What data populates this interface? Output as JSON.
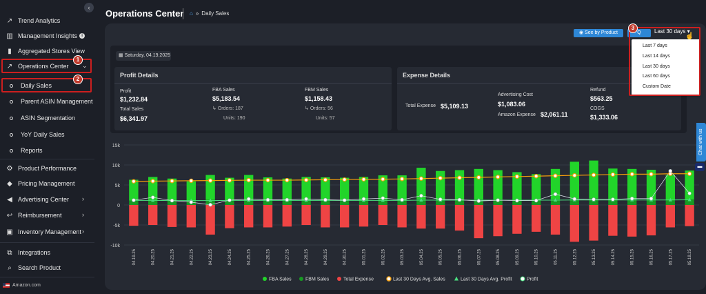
{
  "sidebar": {
    "items": [
      {
        "label": "Trend Analytics",
        "icon": "trend-chart-icon"
      },
      {
        "label": "Management Insights",
        "icon": "bar-chart-icon"
      },
      {
        "label": "Aggregated Stores View",
        "icon": "bar-chart-icon"
      },
      {
        "label": "Operations Center",
        "icon": "trend-up-icon"
      },
      {
        "label": "Product Performance",
        "icon": "gear-icon"
      },
      {
        "label": "Pricing Management",
        "icon": "tag-icon"
      },
      {
        "label": "Advertising Center",
        "icon": "megaphone-icon"
      },
      {
        "label": "Reimbursement",
        "icon": "return-icon"
      },
      {
        "label": "Inventory Management",
        "icon": "box-icon"
      },
      {
        "label": "Integrations",
        "icon": "plug-icon"
      },
      {
        "label": "Search Product",
        "icon": "search-icon"
      }
    ],
    "sub_items": [
      "Daily Sales",
      "Parent ASIN Management",
      "ASIN Segmentation",
      "YoY Daily Sales",
      "Reports"
    ],
    "footer": "Amazon.com",
    "badges": [
      "1",
      "2",
      "3"
    ],
    "collapse_glyph": "‹"
  },
  "header": {
    "title": "Operations Center",
    "breadcrumb_sep": "»",
    "breadcrumb": "Daily Sales"
  },
  "toolbar": {
    "see_by_product": "See by Product",
    "second_btn": "Q",
    "date_range": "Last 30 days"
  },
  "dropdown": {
    "options": [
      "Last 7 days",
      "Last 14 days",
      "Last 30 days",
      "Last 60 days",
      "Custom Date"
    ]
  },
  "summary": {
    "date": "Saturday, 04.19.2025",
    "profit_details": {
      "title": "Profit Details",
      "profit_label": "Profit",
      "profit_value": "$1,232.84",
      "total_sales_label": "Total Sales",
      "total_sales_value": "$6,341.97",
      "fba_label": "FBA Sales",
      "fba_value": "$5,183.54",
      "fba_orders": "Orders: 187",
      "fba_units": "Units: 190",
      "fbm_label": "FBM Sales",
      "fbm_value": "$1,158.43",
      "fbm_orders": "Orders: 56",
      "fbm_units": "Units: 57"
    },
    "expense_details": {
      "title": "Expense Details",
      "total_expense_label": "Total Expense",
      "total_expense_value": "$5,109.13",
      "advertising_label": "Advertising Cost",
      "advertising_value": "$1,083.06",
      "amazon_expense_label": "Amazon Expense",
      "amazon_expense_value": "$2,061.11",
      "refund_label": "Refund",
      "refund_value": "$563.25",
      "cogs_label": "COGS",
      "cogs_value": "$1,333.06"
    }
  },
  "chat": {
    "label": "Chat with us"
  },
  "colors": {
    "fba": "#22d42a",
    "fbm": "#179a22",
    "expense": "#ef4444",
    "avg_sales": "#f59e0b",
    "avg_profit": "#4ade80",
    "profit": "#ffffff"
  },
  "chart_data": {
    "type": "bar",
    "categories": [
      "04.19.25",
      "04.20.25",
      "04.21.25",
      "04.22.25",
      "04.23.25",
      "04.24.25",
      "04.25.25",
      "04.26.25",
      "04.27.25",
      "04.28.25",
      "04.29.25",
      "04.30.25",
      "05.01.25",
      "05.02.25",
      "05.03.25",
      "05.04.25",
      "05.05.25",
      "05.06.25",
      "05.07.25",
      "05.08.25",
      "05.09.25",
      "05.10.25",
      "05.11.25",
      "05.12.25",
      "05.13.25",
      "05.14.25",
      "05.15.25",
      "05.16.25",
      "05.17.25",
      "05.18.25"
    ],
    "y_ticks": [
      "15k",
      "10k",
      "5k",
      "0",
      "-5k",
      "-10k"
    ],
    "ylim": [
      -10000,
      15000
    ],
    "series": [
      {
        "name": "FBA Sales",
        "values": [
          5200,
          5800,
          5500,
          4800,
          6200,
          5600,
          6300,
          5700,
          5500,
          5900,
          5700,
          5600,
          5800,
          6100,
          6200,
          7900,
          7200,
          7300,
          7600,
          7300,
          6900,
          6400,
          7600,
          9200,
          9500,
          7700,
          7600,
          7400,
          6200,
          7200
        ]
      },
      {
        "name": "FBM Sales",
        "values": [
          1100,
          1200,
          1100,
          1100,
          1300,
          1200,
          1200,
          1200,
          1100,
          1100,
          1200,
          1200,
          1200,
          1300,
          1200,
          1400,
          1300,
          1400,
          1400,
          1400,
          1300,
          1300,
          1400,
          1600,
          1600,
          1400,
          1400,
          1400,
          1300,
          1400
        ]
      },
      {
        "name": "Total Expense",
        "values": [
          -5200,
          -5000,
          -5500,
          -5600,
          -7400,
          -5800,
          -5600,
          -5600,
          -5400,
          -5000,
          -5600,
          -5600,
          -5400,
          -5000,
          -5600,
          -5900,
          -5900,
          -6400,
          -8300,
          -7800,
          -7200,
          -6700,
          -7400,
          -9200,
          -8900,
          -7700,
          -7900,
          -7600,
          -5600,
          -5300
        ]
      },
      {
        "name": "Last 30 Days Avg. Sales",
        "values": [
          5900,
          5950,
          6000,
          6050,
          6100,
          6150,
          6200,
          6200,
          6200,
          6250,
          6300,
          6350,
          6400,
          6450,
          6500,
          6600,
          6700,
          6800,
          6900,
          7000,
          7100,
          7200,
          7300,
          7400,
          7500,
          7600,
          7700,
          7700,
          7800,
          7800
        ]
      },
      {
        "name": "Last 30 Days Avg. Profit",
        "values": [
          1150,
          1150,
          1100,
          1100,
          1100,
          1150,
          1150,
          1150,
          1150,
          1150,
          1150,
          1150,
          1150,
          1150,
          1150,
          1200,
          1200,
          1200,
          1200,
          1200,
          1200,
          1200,
          1200,
          1250,
          1250,
          1250,
          1250,
          1250,
          1250,
          1300
        ]
      },
      {
        "name": "Profit",
        "values": [
          1200,
          1900,
          1100,
          700,
          50,
          1200,
          1500,
          1300,
          1300,
          1500,
          1300,
          1200,
          1500,
          1700,
          1300,
          2300,
          1400,
          1300,
          1000,
          1200,
          1100,
          1100,
          2700,
          1500,
          1400,
          1400,
          1600,
          1600,
          8500,
          2900
        ]
      }
    ]
  }
}
